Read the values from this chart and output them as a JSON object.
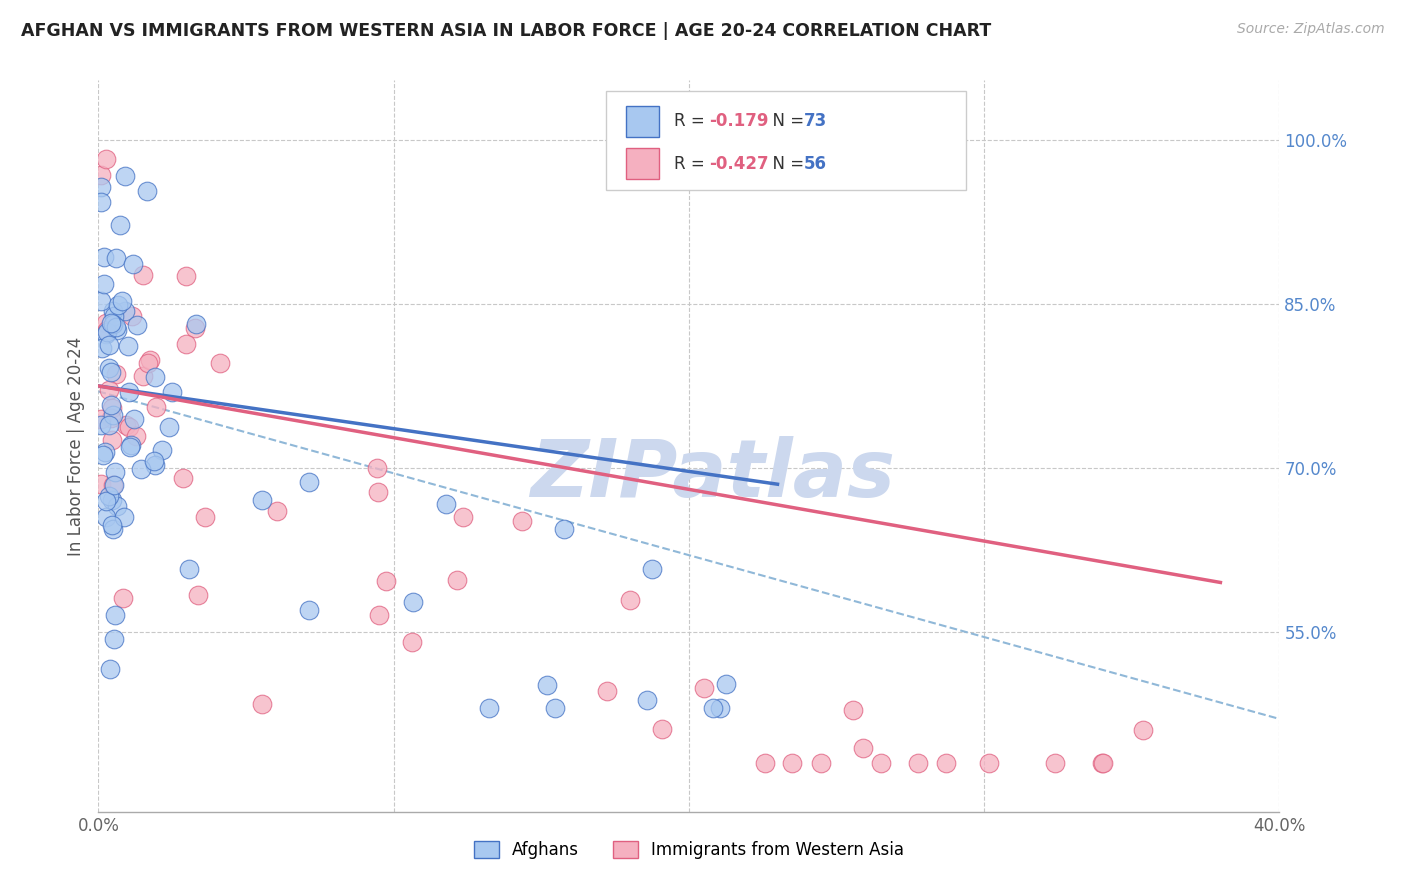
{
  "title": "AFGHAN VS IMMIGRANTS FROM WESTERN ASIA IN LABOR FORCE | AGE 20-24 CORRELATION CHART",
  "source": "Source: ZipAtlas.com",
  "ylabel": "In Labor Force | Age 20-24",
  "x_min": 0.0,
  "x_max": 0.4,
  "y_min": 0.385,
  "y_max": 1.055,
  "x_ticks": [
    0.0,
    0.1,
    0.2,
    0.3,
    0.4
  ],
  "x_tick_labels": [
    "0.0%",
    "",
    "",
    "",
    "40.0%"
  ],
  "y_ticks_right": [
    0.55,
    0.7,
    0.85,
    1.0
  ],
  "y_tick_labels_right": [
    "55.0%",
    "70.0%",
    "85.0%",
    "100.0%"
  ],
  "grid_color": "#c8c8c8",
  "background_color": "#ffffff",
  "series1_color": "#a8c8f0",
  "series2_color": "#f5b0c0",
  "series1_label": "Afghans",
  "series2_label": "Immigrants from Western Asia",
  "series1_R": "-0.179",
  "series1_N": "73",
  "series2_R": "-0.427",
  "series2_N": "56",
  "trend1_color": "#4472c4",
  "trend2_color": "#e06080",
  "trend_dashed_color": "#90b8d8",
  "watermark": "ZIPatlas",
  "watermark_color": "#ccd8ee"
}
